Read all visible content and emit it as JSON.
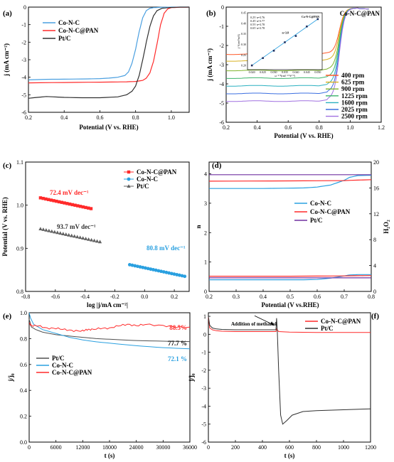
{
  "chart_data": [
    {
      "id": "a",
      "panel_label": "(a)",
      "type": "line",
      "xlabel": "Potential (V vs. RHE)",
      "ylabel": "j (mA cm⁻²)",
      "xlim": [
        0.2,
        1.1
      ],
      "ylim": [
        -6,
        0
      ],
      "xticks": [
        0.2,
        0.4,
        0.6,
        0.8,
        1.0
      ],
      "yticks": [
        -6,
        -5,
        -4,
        -3,
        -2,
        -1,
        0
      ],
      "legend_position": "top-left",
      "series": [
        {
          "name": "Co-N-C",
          "color": "#4a9fe0",
          "x": [
            0.2,
            0.3,
            0.4,
            0.5,
            0.6,
            0.65,
            0.7,
            0.74,
            0.76,
            0.78,
            0.8,
            0.82,
            0.84,
            0.86,
            0.88,
            0.9,
            0.95,
            1.0,
            1.05,
            1.1
          ],
          "y": [
            -4.15,
            -4.12,
            -4.11,
            -4.1,
            -4.08,
            -4.05,
            -4.0,
            -3.9,
            -3.7,
            -3.2,
            -2.4,
            -1.4,
            -0.6,
            -0.2,
            -0.07,
            -0.03,
            -0.01,
            0,
            0,
            0
          ]
        },
        {
          "name": "Co-N-C@PAN",
          "color": "#ff2a2a",
          "x": [
            0.2,
            0.4,
            0.6,
            0.7,
            0.75,
            0.8,
            0.84,
            0.86,
            0.88,
            0.9,
            0.92,
            0.94,
            0.96,
            0.98,
            1.0,
            1.05,
            1.1
          ],
          "y": [
            -4.32,
            -4.3,
            -4.28,
            -4.27,
            -4.26,
            -4.24,
            -4.18,
            -4.05,
            -3.75,
            -3.1,
            -2.1,
            -1.0,
            -0.35,
            -0.1,
            -0.03,
            -0.01,
            0
          ]
        },
        {
          "name": "Pt/C",
          "color": "#303030",
          "x": [
            0.2,
            0.3,
            0.4,
            0.5,
            0.6,
            0.7,
            0.75,
            0.78,
            0.8,
            0.82,
            0.84,
            0.86,
            0.88,
            0.9,
            0.92,
            0.95,
            1.0,
            1.05,
            1.1
          ],
          "y": [
            -5.2,
            -5.1,
            -5.15,
            -5.17,
            -5.17,
            -5.12,
            -5.0,
            -4.8,
            -4.5,
            -3.9,
            -3.0,
            -2.0,
            -1.1,
            -0.5,
            -0.2,
            -0.06,
            -0.02,
            0,
            0
          ]
        }
      ]
    },
    {
      "id": "b",
      "panel_label": "(b)",
      "title": "Co-N-C@PAN",
      "type": "line",
      "xlabel": "Potential (V vs. RHE)",
      "ylabel": "j (mA cm⁻²)",
      "xlim": [
        0.2,
        1.2
      ],
      "ylim": [
        -6,
        0
      ],
      "xticks": [
        0.2,
        0.4,
        0.6,
        0.8,
        1.0,
        1.2
      ],
      "yticks": [
        -6,
        -5,
        -4,
        -3,
        -2,
        -1,
        0
      ],
      "legend_position": "bottom-right",
      "series": [
        {
          "name": "400 rpm",
          "color": "#ff5a2a",
          "plateau": -2.45
        },
        {
          "name": "625 rpm",
          "color": "#d8b020",
          "plateau": -2.8
        },
        {
          "name": "900 rpm",
          "color": "#7fb32d",
          "plateau": -3.3
        },
        {
          "name": "1225 rpm",
          "color": "#3ab36a",
          "plateau": -3.7
        },
        {
          "name": "1600 rpm",
          "color": "#2ab0c0",
          "plateau": -4.1
        },
        {
          "name": "2025 rpm",
          "color": "#3b6fe0",
          "plateau": -4.5
        },
        {
          "name": "2500 rpm",
          "color": "#a070e0",
          "plateau": -4.9
        }
      ],
      "inset": {
        "title": "Co-N-C@PAN",
        "annotation": "n=3.8",
        "xlabel": "ω⁻¹ᐟ²(rad⁻¹ᐟ²s¹ᐟ²)",
        "ylabel": "j⁻¹(cm²/mA)",
        "legend": [
          "0.2V n=3.76",
          "0.4V n=3.77",
          "0.5V n=3.78",
          "0.6V n=3.78"
        ],
        "xticks": [
          "0.020",
          "0.025",
          "0.030",
          "0.035",
          "0.040",
          "0.045",
          "0.050"
        ],
        "yticks": [
          "0.20",
          "0.25",
          "0.30",
          "0.35",
          "0.40",
          "0.45"
        ],
        "x": [
          0.02,
          0.025,
          0.03,
          0.035,
          0.04,
          0.045,
          0.05
        ],
        "y": [
          0.2,
          0.235,
          0.27,
          0.31,
          0.34,
          0.385,
          0.42
        ]
      }
    },
    {
      "id": "c",
      "panel_label": "(c)",
      "type": "scatter",
      "xlabel": "log |j/mA cm⁻²|",
      "ylabel": "Potential (V vs. RHE)",
      "xlim": [
        -0.8,
        0.3
      ],
      "ylim": [
        0.8,
        1.1
      ],
      "xticks": [
        -0.8,
        -0.6,
        -0.4,
        -0.2,
        0.0,
        0.2
      ],
      "yticks": [
        0.8,
        0.9,
        1.0,
        1.1
      ],
      "legend_position": "top-right",
      "series": [
        {
          "name": "Co-N-C@PAN",
          "color": "#ff2a2a",
          "marker": "square",
          "x_range": [
            -0.7,
            -0.36
          ],
          "y_range": [
            1.017,
            0.992
          ],
          "n": 20,
          "annotation": "72.4 mV dec⁻¹"
        },
        {
          "name": "Co-N-C",
          "color": "#2aa0e0",
          "marker": "circle",
          "x_range": [
            -0.1,
            0.27
          ],
          "y_range": [
            0.862,
            0.835
          ],
          "n": 22,
          "annotation": "80.8 mV dec⁻¹"
        },
        {
          "name": "Pt/C",
          "color": "#606060",
          "marker": "triangle",
          "x_range": [
            -0.7,
            -0.3
          ],
          "y_range": [
            0.945,
            0.915
          ],
          "n": 22,
          "annotation": "93.7 mV dec⁻¹"
        }
      ]
    },
    {
      "id": "d",
      "panel_label": "(d)",
      "type": "line",
      "xlabel": "Potential (V vs.RHE)",
      "ylabel": "n",
      "y2label": "H₂O₂",
      "xlim": [
        0.2,
        0.8
      ],
      "ylim": [
        0,
        4.4
      ],
      "y2lim": [
        0,
        20
      ],
      "xticks": [
        0.2,
        0.3,
        0.4,
        0.5,
        0.6,
        0.7,
        0.8
      ],
      "yticks": [
        0,
        1,
        2,
        3,
        4
      ],
      "y2ticks": [
        0,
        4,
        8,
        12,
        16,
        20
      ],
      "legend_position": "right",
      "series": [
        {
          "name": "Co-N-C",
          "color": "#2aa0e0",
          "n": {
            "x": [
              0.2,
              0.4,
              0.55,
              0.6,
              0.65,
              0.7,
              0.72,
              0.75,
              0.8
            ],
            "y": [
              3.5,
              3.5,
              3.52,
              3.55,
              3.62,
              3.78,
              3.88,
              3.94,
              3.95
            ]
          },
          "h2o2": {
            "x": [
              0.2,
              0.4,
              0.55,
              0.6,
              0.65,
              0.7,
              0.72,
              0.75,
              0.8
            ],
            "y": [
              1.8,
              1.8,
              1.8,
              1.85,
              2.05,
              2.4,
              2.55,
              2.6,
              2.6
            ]
          }
        },
        {
          "name": "Co-N-C@PAN",
          "color": "#ff2a2a",
          "n": {
            "x": [
              0.2,
              0.5,
              0.7,
              0.8
            ],
            "y": [
              3.75,
              3.76,
              3.77,
              3.8
            ]
          },
          "h2o2": {
            "x": [
              0.2,
              0.5,
              0.7,
              0.8
            ],
            "y": [
              2.35,
              2.35,
              2.4,
              2.45
            ]
          }
        },
        {
          "name": "Pt/C",
          "color": "#7030a0",
          "n": {
            "x": [
              0.2,
              0.5,
              0.8
            ],
            "y": [
              3.97,
              3.97,
              3.97
            ]
          },
          "h2o2": {
            "x": [
              0.2,
              0.5,
              0.8
            ],
            "y": [
              2.1,
              2.1,
              2.1
            ]
          }
        }
      ]
    },
    {
      "id": "e",
      "panel_label": "(e)",
      "type": "line",
      "xlabel": "t (s)",
      "ylabel": "j/j₀",
      "xlim": [
        0,
        36000
      ],
      "ylim": [
        0,
        1.0
      ],
      "xticks": [
        0,
        6000,
        12000,
        18000,
        24000,
        30000,
        36000
      ],
      "yticks": [
        0.0,
        0.2,
        0.4,
        0.6,
        0.8,
        1.0
      ],
      "legend_position": "center-left",
      "annotations": [
        {
          "text": "88.5%",
          "color": "#ff2a2a"
        },
        {
          "text": "77.7 %",
          "color": "#000000"
        },
        {
          "text": "72.1 %",
          "color": "#2aa0e0"
        }
      ],
      "series": [
        {
          "name": "Pt/C",
          "color": "#505050",
          "x": [
            0,
            500,
            1500,
            3000,
            6000,
            9000,
            12000,
            15000,
            18000,
            24000,
            30000,
            36000
          ],
          "y": [
            0.95,
            0.89,
            0.87,
            0.85,
            0.83,
            0.82,
            0.81,
            0.8,
            0.795,
            0.785,
            0.78,
            0.777
          ]
        },
        {
          "name": "Co-N-C",
          "color": "#2aa0e0",
          "x": [
            0,
            300,
            1000,
            3000,
            6000,
            9000,
            12000,
            15000,
            18000,
            24000,
            30000,
            36000
          ],
          "y": [
            1.0,
            0.96,
            0.91,
            0.87,
            0.84,
            0.81,
            0.79,
            0.775,
            0.765,
            0.745,
            0.73,
            0.721
          ]
        },
        {
          "name": "Co-N-C@PAN",
          "color": "#ff2a2a",
          "x": [
            0,
            500,
            2000,
            4000,
            6000,
            8000,
            10000,
            12000,
            13000,
            14000,
            16000,
            18000,
            20000,
            22000,
            24000,
            26000,
            30000,
            33000,
            36000
          ],
          "y": [
            0.92,
            0.9,
            0.9,
            0.88,
            0.88,
            0.87,
            0.86,
            0.86,
            0.87,
            0.87,
            0.88,
            0.88,
            0.9,
            0.91,
            0.9,
            0.91,
            0.9,
            0.89,
            0.885
          ]
        }
      ]
    },
    {
      "id": "f",
      "panel_label": "(f)",
      "type": "line",
      "xlabel": "t (s)",
      "ylabel": "j/j₀",
      "xlim": [
        0,
        1200
      ],
      "ylim": [
        -6,
        1.2
      ],
      "xticks": [
        0,
        200,
        400,
        600,
        800,
        1000,
        1200
      ],
      "yticks": [
        -6,
        -5,
        -4,
        -3,
        -2,
        -1,
        0,
        1
      ],
      "legend_position": "top-right",
      "annotation": "Addition of methanol",
      "series": [
        {
          "name": "Co-N-C@PAN",
          "color": "#ff2a2a",
          "x": [
            0,
            10,
            30,
            60,
            100,
            200,
            300,
            400,
            500,
            505,
            520,
            600,
            800,
            1000,
            1200
          ],
          "y": [
            0.95,
            0.35,
            0.25,
            0.2,
            0.17,
            0.15,
            0.15,
            0.15,
            0.15,
            0.3,
            0.15,
            0.12,
            0.1,
            0.1,
            0.1
          ]
        },
        {
          "name": "Pt/C",
          "color": "#303030",
          "x": [
            0,
            10,
            30,
            60,
            100,
            200,
            300,
            400,
            500,
            505,
            510,
            520,
            535,
            550,
            580,
            620,
            700,
            800,
            1000,
            1200
          ],
          "y": [
            1.0,
            0.5,
            0.35,
            0.3,
            0.27,
            0.25,
            0.25,
            0.25,
            0.25,
            0.9,
            0.2,
            -2.0,
            -4.5,
            -5.0,
            -4.8,
            -4.5,
            -4.3,
            -4.25,
            -4.2,
            -4.15
          ]
        }
      ]
    }
  ]
}
